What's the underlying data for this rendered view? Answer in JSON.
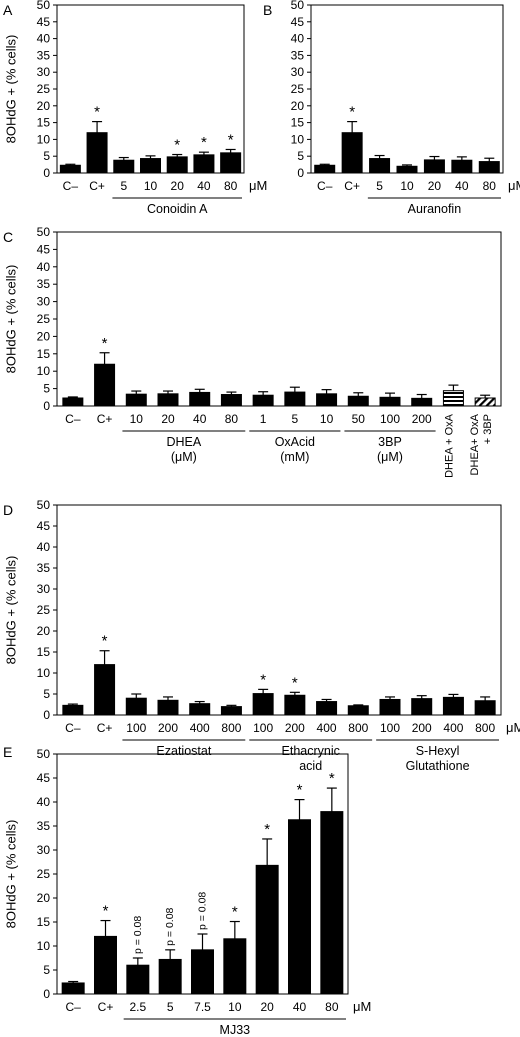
{
  "figure": {
    "panels": [
      {
        "id": "A",
        "label": "A"
      },
      {
        "id": "B",
        "label": "B"
      },
      {
        "id": "C",
        "label": "C"
      },
      {
        "id": "D",
        "label": "D"
      },
      {
        "id": "E",
        "label": "E"
      }
    ]
  },
  "chart_data": [
    {
      "panel": "A",
      "type": "bar",
      "ylabel": "8OHdG + (% cells)",
      "ylim": [
        0,
        50
      ],
      "yticks": [
        0,
        5,
        10,
        15,
        20,
        25,
        30,
        35,
        40,
        45,
        50
      ],
      "categories": [
        "C–",
        "C+",
        "5",
        "10",
        "20",
        "40",
        "80"
      ],
      "values": [
        2.3,
        12,
        3.8,
        4.3,
        4.8,
        5.4,
        6.0
      ],
      "errors": [
        0.3,
        3.3,
        0.8,
        0.8,
        0.7,
        0.8,
        1.0
      ],
      "stars": [
        false,
        true,
        false,
        false,
        true,
        true,
        true
      ],
      "fills": [
        "solid",
        "solid",
        "solid",
        "solid",
        "solid",
        "solid",
        "solid"
      ],
      "unit": "μM",
      "groups": [
        {
          "label": "Conoidin A",
          "from": 2,
          "to": 6
        }
      ]
    },
    {
      "panel": "B",
      "type": "bar",
      "ylim": [
        0,
        50
      ],
      "yticks": [
        0,
        5,
        10,
        15,
        20,
        25,
        30,
        35,
        40,
        45,
        50
      ],
      "categories": [
        "C–",
        "C+",
        "5",
        "10",
        "20",
        "40",
        "80"
      ],
      "values": [
        2.3,
        12,
        4.3,
        2.0,
        3.9,
        3.8,
        3.4
      ],
      "errors": [
        0.3,
        3.3,
        0.9,
        0.4,
        1.0,
        1.0,
        1.0
      ],
      "stars": [
        false,
        true,
        false,
        false,
        false,
        false,
        false
      ],
      "fills": [
        "solid",
        "solid",
        "solid",
        "solid",
        "solid",
        "solid",
        "solid"
      ],
      "unit": "μM",
      "groups": [
        {
          "label": "Auranofin",
          "from": 2,
          "to": 6
        }
      ]
    },
    {
      "panel": "C",
      "type": "bar",
      "ylabel": "8OHdG + (% cells)",
      "ylim": [
        0,
        50
      ],
      "yticks": [
        0,
        5,
        10,
        15,
        20,
        25,
        30,
        35,
        40,
        45,
        50
      ],
      "categories": [
        "C–",
        "C+",
        "10",
        "20",
        "40",
        "80",
        "1",
        "5",
        "10",
        "50",
        "100",
        "200",
        "DHEA + OxA",
        "DHEA+ OxA + 3BP"
      ],
      "values": [
        2.3,
        12,
        3.4,
        3.5,
        3.9,
        3.3,
        3.1,
        4.0,
        3.5,
        2.8,
        2.5,
        2.2,
        4.4,
        2.3
      ],
      "errors": [
        0.3,
        3.3,
        0.9,
        0.8,
        0.9,
        0.7,
        1.0,
        1.4,
        1.2,
        1.0,
        1.2,
        1.1,
        1.6,
        0.8
      ],
      "stars": [
        false,
        true,
        false,
        false,
        false,
        false,
        false,
        false,
        false,
        false,
        false,
        false,
        false,
        false
      ],
      "fills": [
        "solid",
        "solid",
        "solid",
        "solid",
        "solid",
        "solid",
        "solid",
        "solid",
        "solid",
        "solid",
        "solid",
        "solid",
        "hstripe",
        "dstripe"
      ],
      "unit": "",
      "groups": [
        {
          "label": "DHEA",
          "label2": "(μM)",
          "from": 2,
          "to": 5
        },
        {
          "label": "OxAcid",
          "label2": "(mM)",
          "from": 6,
          "to": 8
        },
        {
          "label": "3BP",
          "label2": "(μM)",
          "from": 9,
          "to": 11
        }
      ]
    },
    {
      "panel": "D",
      "type": "bar",
      "ylabel": "8OHdG + (% cells)",
      "ylim": [
        0,
        50
      ],
      "yticks": [
        0,
        5,
        10,
        15,
        20,
        25,
        30,
        35,
        40,
        45,
        50
      ],
      "categories": [
        "C–",
        "C+",
        "100",
        "200",
        "400",
        "800",
        "100",
        "200",
        "400",
        "800",
        "100",
        "200",
        "400",
        "800"
      ],
      "values": [
        2.3,
        12,
        4.0,
        3.5,
        2.7,
        2.0,
        5.1,
        4.7,
        3.2,
        2.2,
        3.7,
        3.9,
        4.2,
        3.4
      ],
      "errors": [
        0.3,
        3.3,
        1.0,
        0.8,
        0.5,
        0.3,
        1.0,
        0.7,
        0.5,
        0.2,
        0.6,
        0.7,
        0.7,
        0.9
      ],
      "stars": [
        false,
        true,
        false,
        false,
        false,
        false,
        true,
        true,
        false,
        false,
        false,
        false,
        false,
        false
      ],
      "fills": [
        "solid",
        "solid",
        "solid",
        "solid",
        "solid",
        "solid",
        "solid",
        "solid",
        "solid",
        "solid",
        "solid",
        "solid",
        "solid",
        "solid"
      ],
      "unit": "μM",
      "groups": [
        {
          "label": "Ezatiostat",
          "from": 2,
          "to": 5
        },
        {
          "label": "Ethacrynic",
          "label2": "acid",
          "from": 6,
          "to": 9
        },
        {
          "label": "S-Hexyl",
          "label2": "Glutathione",
          "from": 10,
          "to": 13
        }
      ]
    },
    {
      "panel": "E",
      "type": "bar",
      "ylabel": "8OHdG + (% cells)",
      "ylim": [
        0,
        50
      ],
      "yticks": [
        0,
        5,
        10,
        15,
        20,
        25,
        30,
        35,
        40,
        45,
        50
      ],
      "categories": [
        "C–",
        "C+",
        "2.5",
        "5",
        "7.5",
        "10",
        "20",
        "40",
        "80"
      ],
      "values": [
        2.3,
        12,
        6.0,
        7.2,
        9.2,
        11.5,
        26.8,
        36.3,
        38.0
      ],
      "errors": [
        0.3,
        3.3,
        1.5,
        2.0,
        3.3,
        3.6,
        5.5,
        4.2,
        4.9
      ],
      "stars": [
        false,
        true,
        false,
        false,
        false,
        true,
        true,
        true,
        true
      ],
      "fills": [
        "solid",
        "solid",
        "solid",
        "solid",
        "solid",
        "solid",
        "solid",
        "solid",
        "solid"
      ],
      "annotations": [
        {
          "index": 2,
          "text": "p = 0.08"
        },
        {
          "index": 3,
          "text": "p = 0.08"
        },
        {
          "index": 4,
          "text": "p = 0.08"
        }
      ],
      "unit": "μM",
      "groups": [
        {
          "label": "MJ33",
          "from": 2,
          "to": 8
        }
      ]
    }
  ]
}
